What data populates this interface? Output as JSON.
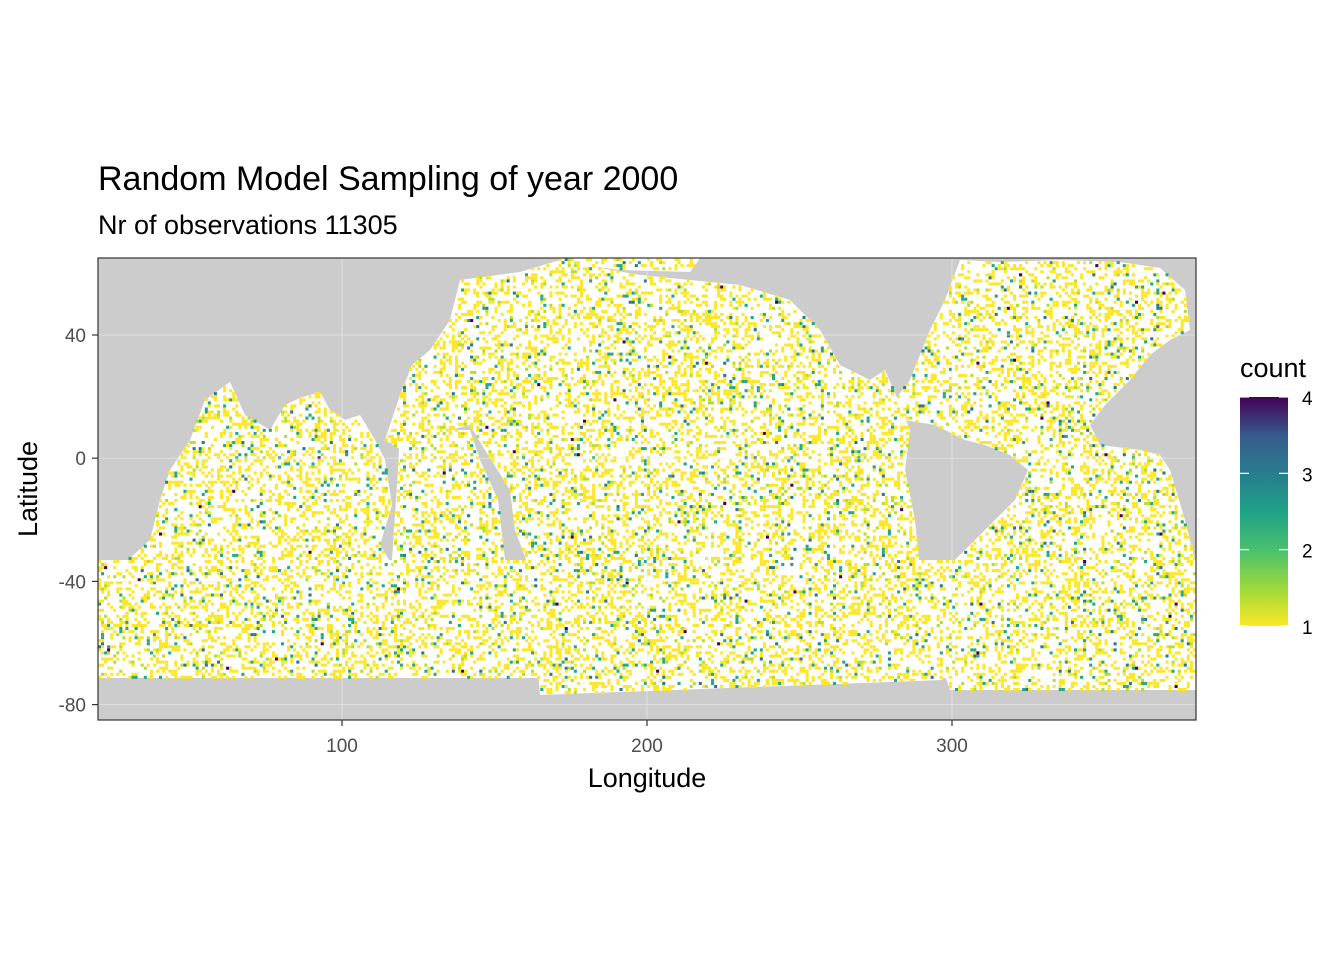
{
  "chart_data": {
    "type": "heatmap",
    "title": "Random Model Sampling of year 2000",
    "subtitle": "Nr of observations 11305",
    "xlabel": "Longitude",
    "ylabel": "Latitude",
    "xlim": [
      20,
      380
    ],
    "ylim": [
      -85,
      65
    ],
    "x_ticks": [
      100,
      200,
      300
    ],
    "x_tick_labels": [
      "100",
      "200",
      "300"
    ],
    "y_ticks": [
      40,
      0,
      -40,
      -80
    ],
    "y_tick_labels": [
      "40",
      "0",
      "-40",
      "-80"
    ],
    "grid": true,
    "legend": {
      "title": "count",
      "placement": "right",
      "range": [
        1,
        4
      ],
      "ticks": [
        1,
        2,
        3,
        4
      ],
      "tick_labels": [
        "1",
        "2",
        "3",
        "4"
      ],
      "colormap": "viridis-reversed"
    },
    "colors": {
      "land": "#cccccc",
      "ocean": "#ffffff",
      "count_1": "#fde725",
      "count_2": "#22a884",
      "count_3": "#2a788e",
      "count_4": "#440154"
    },
    "total_observations": 11305
  }
}
